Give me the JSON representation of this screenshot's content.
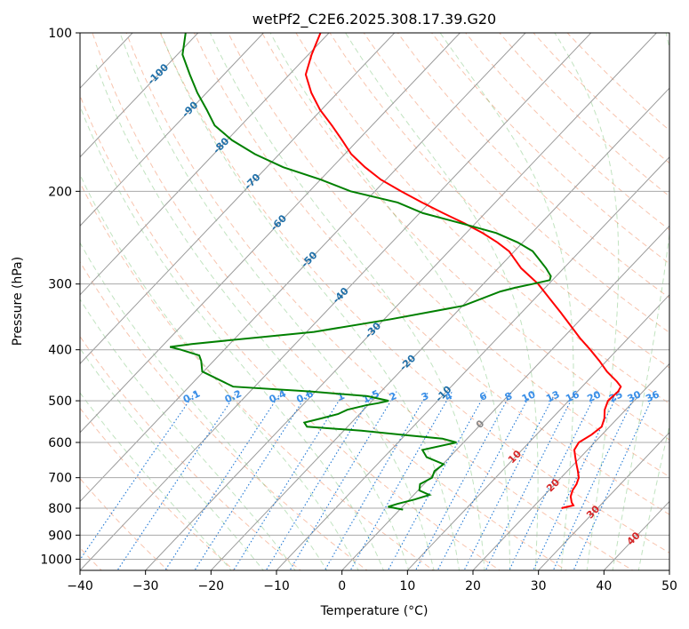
{
  "chart_data": {
    "type": "skew-t",
    "title": "wetPf2_C2E6.2025.308.17.39.G20",
    "xlabel": "Temperature (°C)",
    "ylabel": "Pressure (hPa)",
    "xlim": [
      -40,
      50
    ],
    "ylim": [
      1050,
      100
    ],
    "x_ticks": [
      -40,
      -30,
      -20,
      -10,
      0,
      10,
      20,
      30,
      40,
      50
    ],
    "x_tick_labels": [
      "−40",
      "−30",
      "−20",
      "−10",
      "0",
      "10",
      "20",
      "30",
      "40",
      "50"
    ],
    "y_ticks": [
      100,
      200,
      300,
      400,
      500,
      600,
      700,
      800,
      900,
      1000
    ],
    "y_tick_labels": [
      "100",
      "200",
      "300",
      "400",
      "500",
      "600",
      "700",
      "800",
      "900",
      "1000"
    ],
    "isotherms": [
      -160,
      -150,
      -140,
      -130,
      -120,
      -110,
      -100,
      -90,
      -80,
      -70,
      -60,
      -50,
      -40,
      -30,
      -20,
      -10,
      0,
      10,
      20,
      30,
      40,
      50
    ],
    "dry_adiabats_theta_c": [
      -40,
      -30,
      -20,
      -10,
      0,
      10,
      20,
      30,
      40,
      50,
      60,
      70,
      80,
      90,
      100,
      110,
      120,
      130,
      140,
      150,
      160,
      170
    ],
    "moist_adiabats_c": [
      -20,
      -15,
      -10,
      -5,
      0,
      4,
      8,
      12,
      16,
      20,
      24,
      28,
      32,
      36,
      40,
      44
    ],
    "mixing_ratios_gkg": [
      0.1,
      0.2,
      0.4,
      0.6,
      1,
      1.5,
      2,
      3,
      4,
      6,
      8,
      10,
      13,
      16,
      20,
      25,
      30,
      36
    ],
    "mixing_ratio_labels": [
      "0.1",
      "0.2",
      "0.4",
      "0.6",
      "1",
      "1.5",
      "2",
      "3",
      "4",
      "6",
      "8",
      "10",
      "13",
      "16",
      "20",
      "25",
      "30",
      "36"
    ],
    "isotherm_labels": [
      {
        "text": "-100",
        "t": -100,
        "p": 120
      },
      {
        "text": "-90",
        "t": -90,
        "p": 140
      },
      {
        "text": "-80",
        "t": -80,
        "p": 164
      },
      {
        "text": "-70",
        "t": -70,
        "p": 192
      },
      {
        "text": "-60",
        "t": -60,
        "p": 230
      },
      {
        "text": "-50",
        "t": -50,
        "p": 270
      },
      {
        "text": "-40",
        "t": -40,
        "p": 316
      },
      {
        "text": "-30",
        "t": -30,
        "p": 368
      },
      {
        "text": "-20",
        "t": -20,
        "p": 424
      },
      {
        "text": "-10",
        "t": -10,
        "p": 486
      },
      {
        "text": "0",
        "t": 0,
        "p": 555,
        "color": "#888888"
      },
      {
        "text": "10",
        "t": 10,
        "p": 640,
        "color": "#d62728"
      },
      {
        "text": "20",
        "t": 20,
        "p": 725,
        "color": "#d62728"
      },
      {
        "text": "30",
        "t": 30,
        "p": 815,
        "color": "#d62728"
      },
      {
        "text": "40",
        "t": 40,
        "p": 915,
        "color": "#d62728"
      }
    ],
    "series": [
      {
        "name": "Temperature",
        "color": "#ff0000",
        "p": [
          800,
          790,
          780,
          760,
          740,
          720,
          700,
          680,
          660,
          640,
          620,
          600,
          580,
          560,
          540,
          520,
          500,
          480,
          470,
          460,
          440,
          420,
          400,
          380,
          360,
          340,
          320,
          300,
          280,
          260,
          250,
          240,
          230,
          220,
          210,
          200,
          190,
          180,
          170,
          160,
          150,
          140,
          130,
          120,
          110,
          100
        ],
        "t": [
          24.5,
          25.9,
          25.2,
          24.2,
          23.6,
          23.3,
          22.7,
          21.6,
          20.4,
          19.2,
          18.0,
          17.6,
          18.4,
          18.8,
          18.0,
          16.8,
          16.0,
          16.2,
          15.9,
          14.6,
          11.6,
          8.9,
          5.9,
          2.6,
          -0.6,
          -4.0,
          -7.7,
          -11.6,
          -16.5,
          -20.8,
          -23.9,
          -27.5,
          -31.7,
          -36.4,
          -41.2,
          -46.0,
          -50.8,
          -55.0,
          -59.0,
          -62.4,
          -66.1,
          -70.2,
          -74.0,
          -77.5,
          -79.5,
          -81.3
        ]
      },
      {
        "name": "Dewpoint",
        "color": "#008000",
        "p": [
          805,
          795,
          785,
          770,
          755,
          740,
          720,
          700,
          680,
          660,
          640,
          620,
          600,
          590,
          580,
          570,
          560,
          550,
          540,
          530,
          520,
          510,
          505,
          500,
          490,
          480,
          470,
          440,
          420,
          410,
          400,
          395,
          390,
          370,
          350,
          330,
          310,
          305,
          300,
          295,
          290,
          280,
          260,
          250,
          240,
          230,
          220,
          210,
          200,
          190,
          180,
          170,
          160,
          150,
          140,
          130,
          120,
          110,
          100
        ],
        "t": [
          0.5,
          -2.2,
          -1.2,
          0.8,
          2.4,
          0.2,
          -0.6,
          0.3,
          -0.3,
          0.1,
          -3.5,
          -5.2,
          -1.1,
          -3.8,
          -10.7,
          -17.3,
          -26.2,
          -27.2,
          -25.2,
          -23.3,
          -22.5,
          -20.3,
          -18.7,
          -17.5,
          -21.4,
          -30.8,
          -43.3,
          -50.2,
          -51.9,
          -53.0,
          -56.6,
          -58.7,
          -55.8,
          -38.9,
          -29.0,
          -19.9,
          -16.3,
          -14.6,
          -12.5,
          -10.4,
          -10.8,
          -12.7,
          -17.2,
          -20.8,
          -25.4,
          -32.2,
          -39.5,
          -44.9,
          -53.7,
          -60.0,
          -67.5,
          -73.7,
          -79.2,
          -84.0,
          -87.5,
          -91.4,
          -95.2,
          -99.2,
          -101.9
        ]
      }
    ]
  }
}
